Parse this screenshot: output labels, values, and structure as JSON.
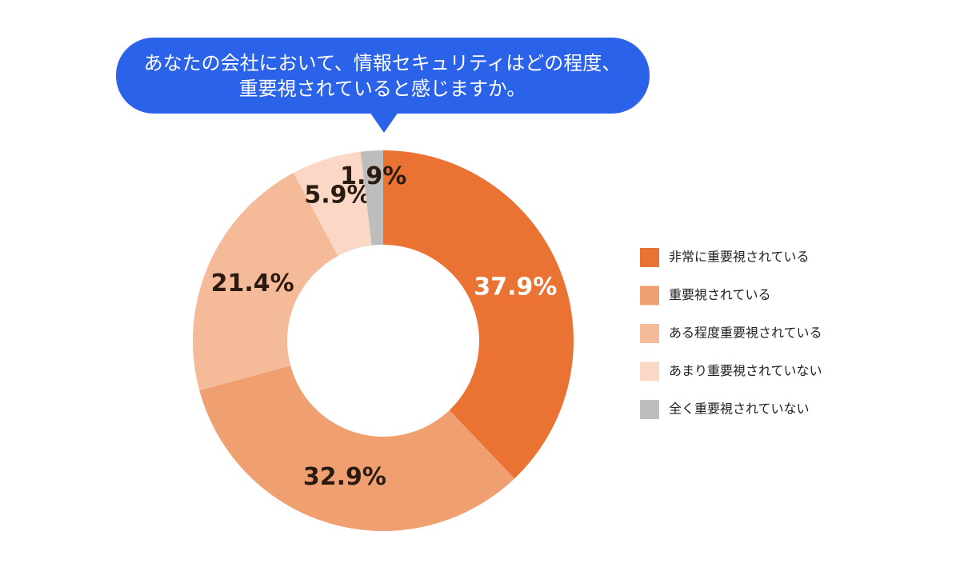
{
  "chart_data": {
    "type": "donut",
    "title": [
      "あなたの会社において、情報セキュリティはどの程度、",
      "重要視されていると感じますか。"
    ],
    "categories": [
      "非常に重要視されている",
      "重要視されている",
      "ある程度重要視されている",
      "あまり重要視されていない",
      "全く重要視されていない"
    ],
    "values": [
      37.9,
      32.9,
      21.4,
      5.9,
      1.9
    ],
    "value_labels": [
      "37.9%",
      "32.9%",
      "21.4%",
      "5.9%",
      "1.9%"
    ],
    "colors": [
      "#ea7333",
      "#f0a070",
      "#f5bb98",
      "#fad8c5",
      "#bdbdbd"
    ],
    "legend": "right"
  }
}
